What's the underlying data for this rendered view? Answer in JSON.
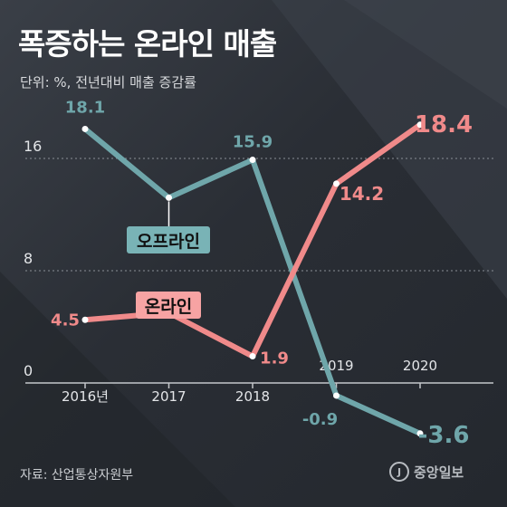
{
  "chart_data": {
    "type": "line",
    "title": "폭증하는 온라인 매출",
    "subtitle": "단위: %, 전년대비 매출 증감률",
    "categories": [
      "2016년",
      "2017",
      "2018",
      "2019",
      "2020"
    ],
    "yticks": [
      "16",
      "8",
      "0"
    ],
    "ytick_values": [
      16,
      8,
      0
    ],
    "ylim": [
      -4,
      20
    ],
    "grid": true,
    "series": [
      {
        "name": "오프라인",
        "values": [
          18.1,
          13.2,
          15.9,
          -0.9,
          -3.6
        ],
        "labels": [
          "18.1",
          "",
          "15.9",
          "-0.9",
          "-3.6"
        ],
        "color": "#6fa6aa"
      },
      {
        "name": "온라인",
        "values": [
          4.5,
          5.0,
          1.9,
          14.2,
          18.4
        ],
        "labels": [
          "4.5",
          "",
          "1.9",
          "14.2",
          "18.4"
        ],
        "color": "#f08a8a"
      }
    ],
    "source": "자료: 산업통상자원부",
    "brand": "중앙일보"
  }
}
